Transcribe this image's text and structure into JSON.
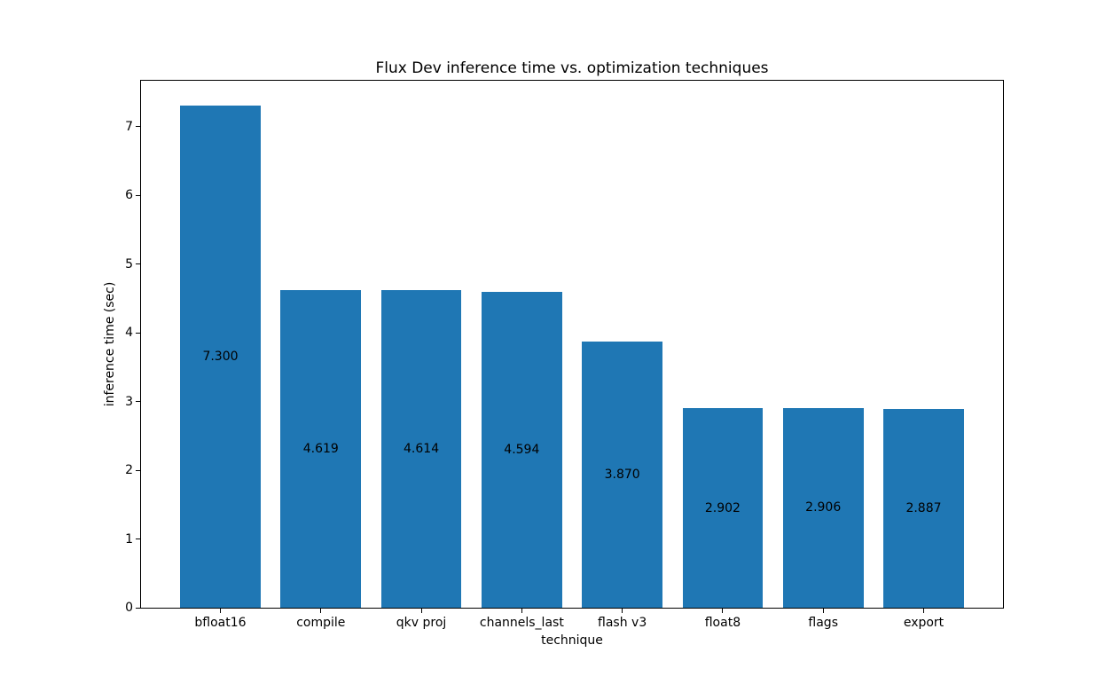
{
  "chart_data": {
    "type": "bar",
    "title": "Flux Dev inference time vs. optimization techniques",
    "xlabel": "technique",
    "ylabel": "inference time (sec)",
    "categories": [
      "bfloat16",
      "compile",
      "qkv proj",
      "channels_last",
      "flash v3",
      "float8",
      "flags",
      "export"
    ],
    "values": [
      7.3,
      4.619,
      4.614,
      4.594,
      3.87,
      2.902,
      2.906,
      2.887
    ],
    "value_labels": [
      "7.300",
      "4.619",
      "4.614",
      "4.594",
      "3.870",
      "2.902",
      "2.906",
      "2.887"
    ],
    "value_label_position": "center",
    "bar_color": "#1f77b4",
    "yticks": [
      0,
      1,
      2,
      3,
      4,
      5,
      6,
      7
    ],
    "ytick_labels": [
      "0",
      "1",
      "2",
      "3",
      "4",
      "5",
      "6",
      "7"
    ],
    "ylim": [
      0,
      7.665
    ],
    "grid": false,
    "legend": null
  }
}
